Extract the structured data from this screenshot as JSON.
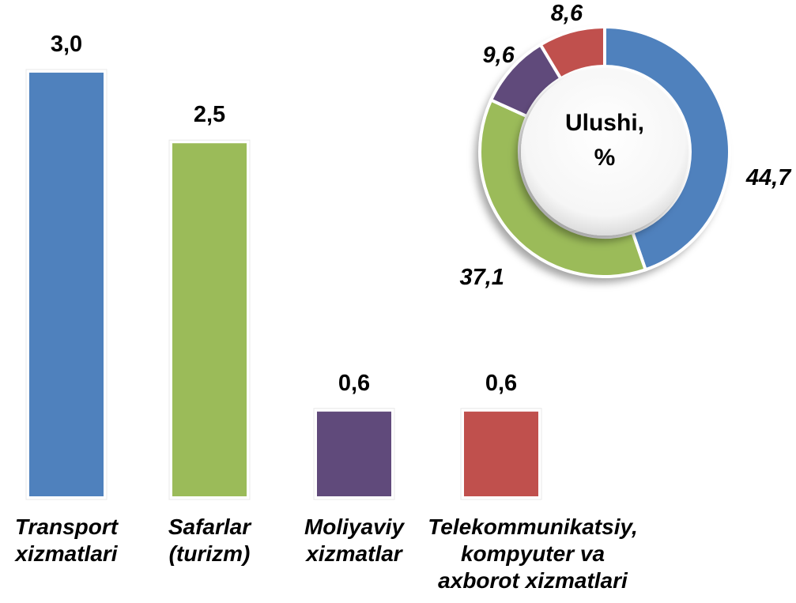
{
  "chart_data": [
    {
      "type": "bar",
      "categories": [
        "Transport xizmatlari",
        "Safarlar (turizm)",
        "Moliyaviy xizmatlar",
        "Telekommunikatsiy, kompyuter va axborot xizmatlari"
      ],
      "values": [
        3.0,
        2.5,
        0.6,
        0.6
      ],
      "value_labels": [
        "3,0",
        "2,5",
        "0,6",
        "0,6"
      ],
      "colors": [
        "#4f81bd",
        "#9bbb59",
        "#604a7b",
        "#c0504d"
      ]
    },
    {
      "type": "donut",
      "title": "Ulushi, %",
      "values": [
        44.7,
        37.1,
        9.6,
        8.6
      ],
      "value_labels": [
        "44,7",
        "37,1",
        "9,6",
        "8,6"
      ],
      "colors": [
        "#4f81bd",
        "#9bbb59",
        "#604a7b",
        "#c0504d"
      ]
    }
  ]
}
